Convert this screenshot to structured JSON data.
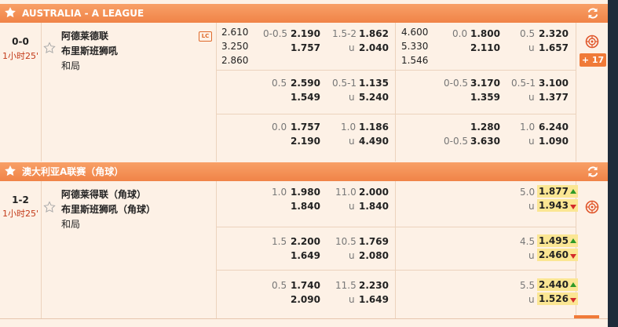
{
  "league1": {
    "name": "AUSTRALIA - A LEAGUE",
    "score": "0-0",
    "time": "1小时25'",
    "home": "阿德莱德联",
    "away": "布里斯班狮吼",
    "draw": "和局",
    "live_badge": "LC",
    "more_label": "+ 17",
    "rows": [
      {
        "x1": [
          "2.610",
          "3.250",
          "2.860"
        ],
        "hdp": [
          "0-0.5",
          ""
        ],
        "hdp_odds": [
          "2.190",
          "1.757"
        ],
        "ou": [
          "1.5-2",
          "u"
        ],
        "ou_odds": [
          "1.862",
          "2.040"
        ],
        "fh1x2": [
          "4.600",
          "5.330",
          "1.546"
        ],
        "fhdp": [
          "0.0",
          ""
        ],
        "fhdp_odds": [
          "1.800",
          "2.110"
        ],
        "fou": [
          "0.5",
          "u"
        ],
        "fou_odds": [
          "2.320",
          "1.657"
        ]
      },
      {
        "x1": [
          "",
          "",
          ""
        ],
        "hdp": [
          "0.5",
          ""
        ],
        "hdp_odds": [
          "2.590",
          "1.549"
        ],
        "ou": [
          "0.5-1",
          "u"
        ],
        "ou_odds": [
          "1.135",
          "5.240"
        ],
        "fh1x2": [
          "",
          "",
          ""
        ],
        "fhdp": [
          "",
          "0-0.5"
        ],
        "fhdp_odds": [
          "3.170",
          "1.359"
        ],
        "fou": [
          "0.5-1",
          "u"
        ],
        "fou_odds": [
          "3.100",
          "1.377"
        ]
      },
      {
        "x1": [
          "",
          "",
          ""
        ],
        "hdp": [
          "0.0",
          ""
        ],
        "hdp_odds": [
          "1.757",
          "2.190"
        ],
        "ou": [
          "1.0",
          "u"
        ],
        "ou_odds": [
          "1.186",
          "4.490"
        ],
        "fh1x2": [
          "",
          "",
          ""
        ],
        "fhdp": [
          "",
          "0-0.5"
        ],
        "fhdp_odds": [
          "1.280",
          "3.630"
        ],
        "fou": [
          "1.0",
          "u"
        ],
        "fou_odds": [
          "6.240",
          "1.090"
        ]
      }
    ]
  },
  "league2": {
    "name": "澳大利亚A联赛（角球）",
    "score": "1-2",
    "time": "1小时25'",
    "home": "阿德莱得联（角球）",
    "away": "布里斯班狮吼（角球）",
    "draw": "和局",
    "rows": [
      {
        "hdp": [
          "1.0",
          ""
        ],
        "hdp_odds": [
          "1.980",
          "1.840"
        ],
        "ou": [
          "11.0",
          "u"
        ],
        "ou_odds": [
          "2.000",
          "1.840"
        ],
        "fou": [
          "5.0",
          "u"
        ],
        "fou_odds": [
          "1.877",
          "1.943"
        ]
      },
      {
        "hdp": [
          "1.5",
          ""
        ],
        "hdp_odds": [
          "2.200",
          "1.649"
        ],
        "ou": [
          "10.5",
          "u"
        ],
        "ou_odds": [
          "1.769",
          "2.080"
        ],
        "fou": [
          "4.5",
          "u"
        ],
        "fou_odds": [
          "1.495",
          "2.460"
        ]
      },
      {
        "hdp": [
          "0.5",
          ""
        ],
        "hdp_odds": [
          "1.740",
          "2.090"
        ],
        "ou": [
          "11.5",
          "u"
        ],
        "ou_odds": [
          "2.230",
          "1.649"
        ],
        "fou": [
          "5.5",
          "u"
        ],
        "fou_odds": [
          "2.440",
          "1.526"
        ]
      }
    ]
  },
  "colors": {
    "header": "#f08347",
    "row_bg": "#fdf1e6",
    "highlight": "#fbe693",
    "up": "#2e9a28",
    "down": "#d32a2a"
  }
}
